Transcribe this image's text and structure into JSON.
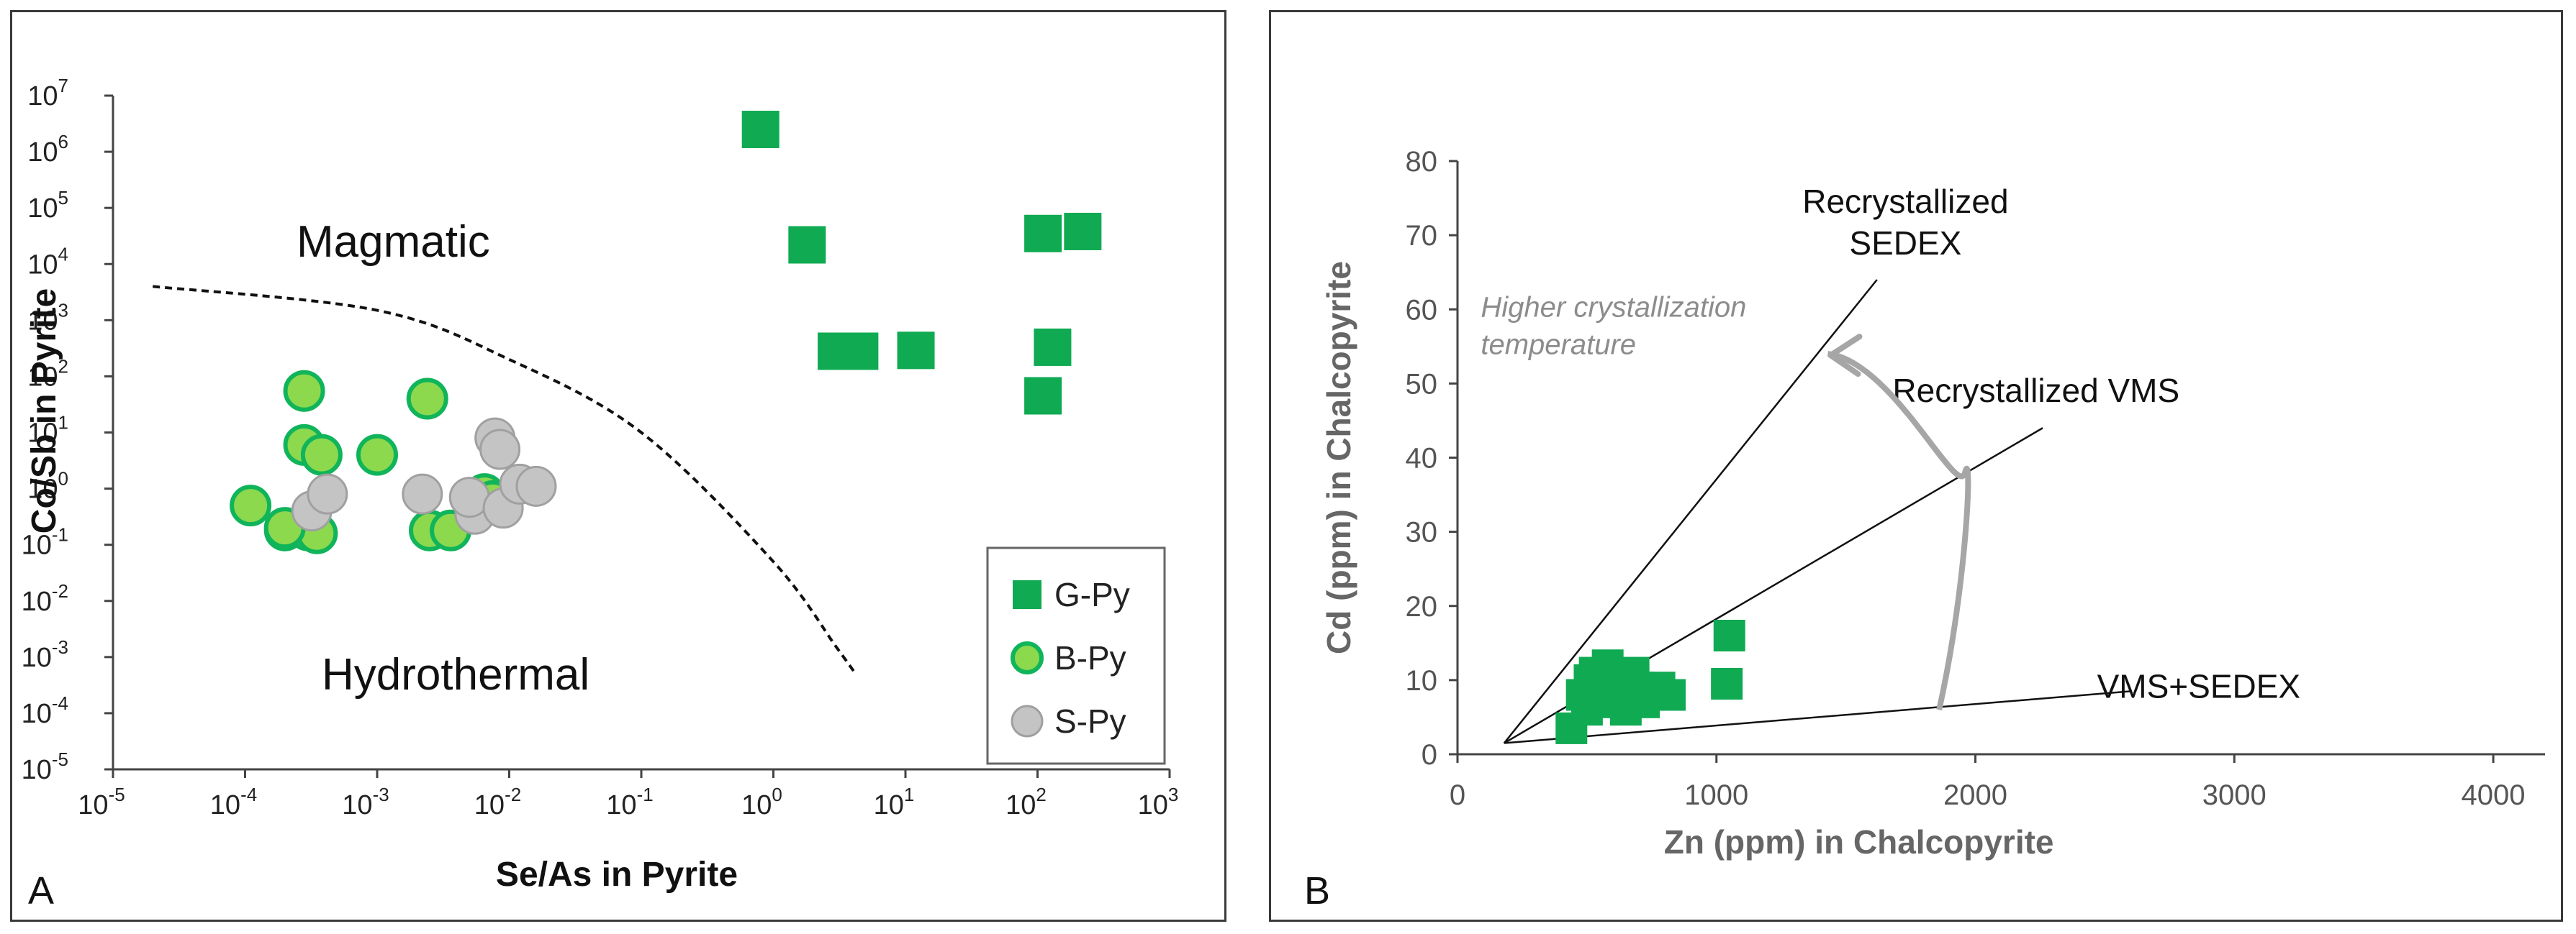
{
  "chart_data": [
    {
      "panel": "A",
      "type": "scatter",
      "xscale": "log",
      "yscale": "log",
      "xlabel": "Se/As in Pyrite",
      "ylabel": "Co/Sb in Pyrite",
      "xlim_exp": [
        -5,
        3
      ],
      "ylim_exp": [
        -5,
        7
      ],
      "xtick_exponents": [
        "-5",
        "-4",
        "-3",
        "-2",
        "-1",
        "0",
        "1",
        "2",
        "3"
      ],
      "ytick_exponents": [
        "-5",
        "-4",
        "-3",
        "-2",
        "-1",
        "0",
        "1",
        "2",
        "3",
        "4",
        "5",
        "6",
        "7"
      ],
      "tick_base": "10",
      "region_labels": [
        "Magmatic",
        "Hydrothermal"
      ],
      "divider": {
        "style": "dashed",
        "points": [
          [
            2e-05,
            4000
          ],
          [
            0.001,
            1500
          ],
          [
            0.01,
            200
          ],
          [
            0.1,
            10
          ],
          [
            1,
            0.05
          ],
          [
            3,
            0.0015
          ],
          [
            4.2,
            0.0005
          ]
        ]
      },
      "legend": {
        "position": "bottom-right",
        "entries": [
          "G-Py",
          "B-Py",
          "S-Py"
        ]
      },
      "series": [
        {
          "name": "G-Py",
          "marker": "square",
          "color": "#0faa52",
          "points": [
            [
              0.8,
              2500000
            ],
            [
              1.8,
              22000
            ],
            [
              3,
              280
            ],
            [
              4.5,
              280
            ],
            [
              12,
              290
            ],
            [
              110,
              35000
            ],
            [
              220,
              38000
            ],
            [
              130,
              330
            ],
            [
              110,
              45
            ]
          ]
        },
        {
          "name": "B-Py",
          "marker": "circle",
          "color": "#8cd94e",
          "points": [
            [
              0.00011,
              0.5
            ],
            [
              0.0002,
              0.18
            ],
            [
              0.00028,
              55
            ],
            [
              0.00028,
              6
            ],
            [
              0.0003,
              0.18
            ],
            [
              0.00038,
              4
            ],
            [
              0.00035,
              0.16
            ],
            [
              0.0002,
              0.2
            ],
            [
              0.001,
              4
            ],
            [
              0.0024,
              40
            ],
            [
              0.0025,
              0.18
            ],
            [
              0.0036,
              0.18
            ],
            [
              0.0065,
              0.8
            ],
            [
              0.0075,
              0.6
            ]
          ]
        },
        {
          "name": "S-Py",
          "marker": "circle",
          "color": "#c4c4c4",
          "points": [
            [
              0.00032,
              0.4
            ],
            [
              0.00042,
              0.8
            ],
            [
              0.0022,
              0.8
            ],
            [
              0.0055,
              0.35
            ],
            [
              0.005,
              0.7
            ],
            [
              0.0078,
              8
            ],
            [
              0.0085,
              5
            ],
            [
              0.009,
              0.45
            ],
            [
              0.012,
              1.2
            ],
            [
              0.016,
              1.1
            ]
          ]
        }
      ],
      "panel_letter": "A"
    },
    {
      "panel": "B",
      "type": "scatter",
      "xlabel": "Zn (ppm) in Chalcopyrite",
      "ylabel": "Cd (ppm) in Chalcopyrite",
      "xlim": [
        0,
        4200
      ],
      "ylim": [
        0,
        80
      ],
      "xticks": [
        "0",
        "1000",
        "2000",
        "3000",
        "4000"
      ],
      "yticks": [
        "0",
        "10",
        "20",
        "30",
        "40",
        "50",
        "60",
        "70",
        "80"
      ],
      "reference_lines": [
        {
          "label_lines": [
            "Recrystallized",
            "SEDEX"
          ],
          "from": [
            180,
            1.5
          ],
          "to": [
            1620,
            64
          ]
        },
        {
          "label_lines": [
            "Recrystallized VMS"
          ],
          "from": [
            180,
            1.5
          ],
          "to": [
            2260,
            44
          ]
        },
        {
          "label_lines": [
            "VMS+SEDEX"
          ],
          "from": [
            180,
            1.5
          ],
          "to": [
            2600,
            8.5
          ]
        }
      ],
      "arrow_label_lines": [
        "Higher crystallization",
        "temperature"
      ],
      "arrow": {
        "from": [
          1860,
          6
        ],
        "via": [
          1960,
          38
        ],
        "to": [
          1430,
          54
        ]
      },
      "series": [
        {
          "name": "Chalcopyrite",
          "marker": "square",
          "color": "#0faa52",
          "points": [
            [
              440,
              3.5
            ],
            [
              480,
              8
            ],
            [
              500,
              6
            ],
            [
              510,
              10
            ],
            [
              530,
              11
            ],
            [
              560,
              9
            ],
            [
              580,
              12
            ],
            [
              600,
              8
            ],
            [
              620,
              7
            ],
            [
              640,
              10
            ],
            [
              650,
              6
            ],
            [
              680,
              11
            ],
            [
              700,
              9
            ],
            [
              720,
              7
            ],
            [
              780,
              9
            ],
            [
              820,
              8
            ],
            [
              1050,
              16
            ],
            [
              1040,
              9.5
            ]
          ]
        }
      ],
      "panel_letter": "B"
    }
  ]
}
